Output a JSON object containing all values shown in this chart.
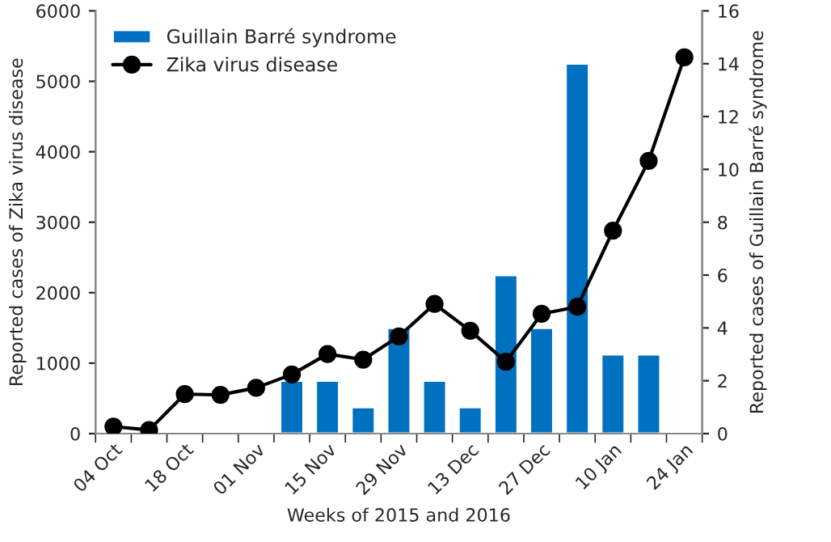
{
  "chart_data": {
    "type": "bar",
    "xlabel": "Weeks of 2015 and 2016",
    "ylabel": "Reported cases of Zika virus disease",
    "y2label": "Reported cases of Guillain Barré syndrome",
    "categories": [
      "04 Oct",
      null,
      "18 Oct",
      null,
      "01 Nov",
      null,
      "15 Nov",
      null,
      "29 Nov",
      null,
      "13 Dec",
      null,
      "27 Dec",
      null,
      "10 Jan",
      null,
      "24 Jan"
    ],
    "series": [
      {
        "name": "Guillain Barré syndrome",
        "axis": "y2",
        "color": "#0070c0",
        "values": [
          null,
          null,
          null,
          null,
          null,
          2,
          2,
          1,
          4,
          2,
          1,
          6,
          4,
          14,
          3,
          3,
          null
        ]
      },
      {
        "name": "Zika virus disease",
        "type": "line",
        "axis": "y",
        "color": "#000000",
        "marker": "circle",
        "line_style": "solid",
        "values": [
          100,
          50,
          560,
          550,
          650,
          840,
          1130,
          1050,
          1380,
          1840,
          1460,
          1020,
          1700,
          1800,
          2880,
          3870,
          5340
        ]
      }
    ],
    "ylim": [
      0,
      6000
    ],
    "yticks": [
      0,
      1000,
      2000,
      3000,
      4000,
      5000,
      6000
    ],
    "y2lim": [
      0,
      16
    ],
    "y2ticks": [
      0,
      2,
      4,
      6,
      8,
      10,
      12,
      14,
      16
    ],
    "grid": false,
    "legend": "top left"
  }
}
